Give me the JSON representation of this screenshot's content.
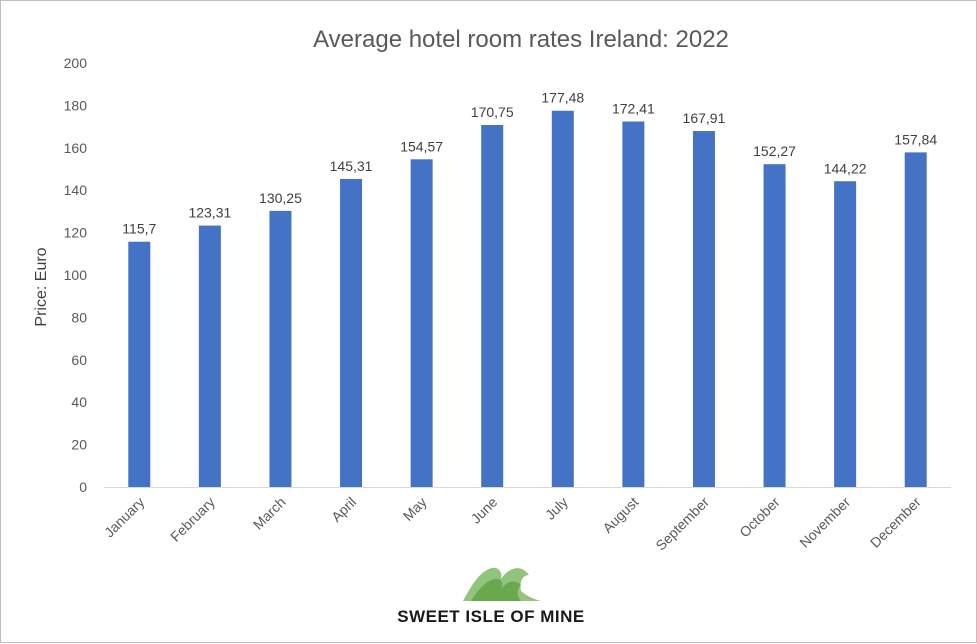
{
  "chart_data": {
    "type": "bar",
    "title": "Average hotel room rates Ireland: 2022",
    "xlabel": "",
    "ylabel": "Price: Euro",
    "categories": [
      "January",
      "February",
      "March",
      "April",
      "May",
      "June",
      "July",
      "August",
      "September",
      "October",
      "November",
      "December"
    ],
    "values": [
      115.7,
      123.31,
      130.25,
      145.31,
      154.57,
      170.75,
      177.48,
      172.41,
      167.91,
      152.27,
      144.22,
      157.84
    ],
    "data_labels": [
      "115,7",
      "123,31",
      "130,25",
      "145,31",
      "154,57",
      "170,75",
      "177,48",
      "172,41",
      "167,91",
      "152,27",
      "144,22",
      "157,84"
    ],
    "ylim": [
      0,
      200
    ],
    "yticks": [
      "0",
      "20",
      "40",
      "60",
      "80",
      "100",
      "120",
      "140",
      "160",
      "180",
      "200"
    ],
    "grid": false,
    "bar_color": "#4472C4"
  },
  "logo": {
    "text": "SWEET ISLE OF MINE",
    "colors": [
      "#6aa84f",
      "#93c47d",
      "#38761d"
    ]
  }
}
